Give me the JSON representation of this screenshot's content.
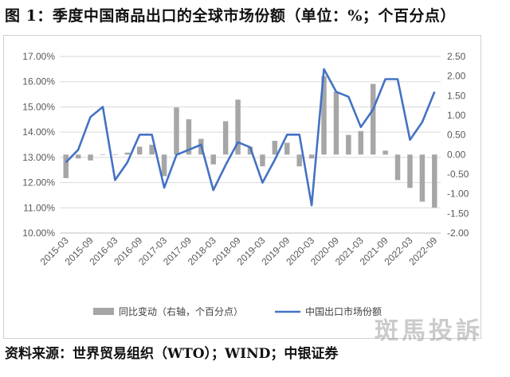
{
  "title": "图 1：季度中国商品出口的全球市场份额（单位：%；个百分点）",
  "source": "资料来源：世界贸易组织（WTO）；WIND；中银证券",
  "watermark": "斑馬投訴",
  "chart_data": {
    "type": "bar+line",
    "categories": [
      "2015-03",
      "2015-06",
      "2015-09",
      "2015-12",
      "2016-03",
      "2016-06",
      "2016-09",
      "2016-12",
      "2017-03",
      "2017-06",
      "2017-09",
      "2017-12",
      "2018-03",
      "2018-06",
      "2018-09",
      "2018-12",
      "2019-03",
      "2019-06",
      "2019-09",
      "2019-12",
      "2020-03",
      "2020-06",
      "2020-09",
      "2020-12",
      "2021-03",
      "2021-06",
      "2021-09",
      "2021-12",
      "2022-03",
      "2022-06",
      "2022-09"
    ],
    "x_tick_labels": [
      "2015-03",
      "2015-09",
      "2016-03",
      "2016-09",
      "2017-03",
      "2017-09",
      "2018-03",
      "2018-09",
      "2019-03",
      "2019-09",
      "2020-03",
      "2020-09",
      "2021-03",
      "2021-09",
      "2022-03",
      "2022-09"
    ],
    "series": [
      {
        "name": "同比变动（右轴，个百分点）",
        "type": "bar",
        "axis": "right",
        "color": "#a6a6a6",
        "values": [
          -0.6,
          -0.1,
          -0.15,
          0,
          0,
          0.05,
          0.2,
          0.25,
          -0.55,
          1.2,
          0.9,
          0.4,
          -0.25,
          0.85,
          1.4,
          0.2,
          -0.3,
          0.35,
          0.3,
          -0.3,
          -0.1,
          2.0,
          1.6,
          0.5,
          0.6,
          1.8,
          0.1,
          -0.65,
          -0.85,
          -1.2,
          -1.35
        ]
      },
      {
        "name": "中国出口市场份额",
        "type": "line",
        "axis": "left",
        "color": "#4472c4",
        "values": [
          12.8,
          13.3,
          14.6,
          15.0,
          12.1,
          12.8,
          13.9,
          13.9,
          11.8,
          13.1,
          13.3,
          13.5,
          11.7,
          12.7,
          13.6,
          13.4,
          12.0,
          12.9,
          13.9,
          13.9,
          11.1,
          16.5,
          15.6,
          15.4,
          14.2,
          14.9,
          16.1,
          16.1,
          13.7,
          14.4,
          15.6
        ]
      }
    ],
    "y_left": {
      "min": 10,
      "max": 17,
      "ticks": [
        "10.00%",
        "11.00%",
        "12.00%",
        "13.00%",
        "14.00%",
        "15.00%",
        "16.00%",
        "17.00%"
      ]
    },
    "y_right": {
      "min": -2,
      "max": 2.5,
      "ticks": [
        "-2.00",
        "-1.50",
        "-1.00",
        "-0.50",
        "0.00",
        "0.50",
        "1.00",
        "1.50",
        "2.00",
        "2.50"
      ]
    },
    "grid": true,
    "legend_position": "bottom"
  }
}
